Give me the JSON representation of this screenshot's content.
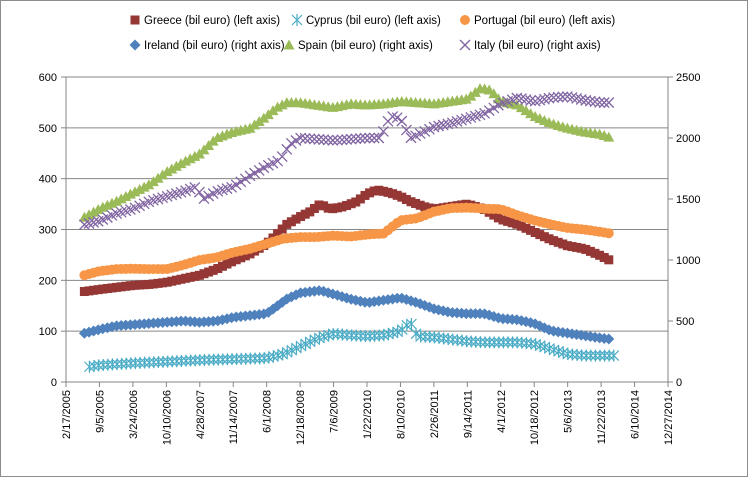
{
  "chart_data": {
    "type": "line",
    "x_ticks": [
      "2/17/2005",
      "9/5/2005",
      "3/24/2006",
      "10/10/2006",
      "4/28/2007",
      "11/14/2007",
      "6/1/2008",
      "12/18/2008",
      "7/6/2009",
      "1/22/2010",
      "8/10/2010",
      "2/26/2011",
      "9/14/2011",
      "4/1/2012",
      "10/18/2012",
      "5/6/2013",
      "11/22/2013",
      "6/10/2014",
      "12/27/2014"
    ],
    "y_left": {
      "min": 0,
      "max": 600,
      "ticks": [
        "0",
        "100",
        "200",
        "300",
        "400",
        "500",
        "600"
      ]
    },
    "y_right": {
      "min": 0,
      "max": 2500,
      "ticks": [
        "0",
        "500",
        "1000",
        "1500",
        "2000",
        "2500"
      ]
    },
    "gridlines": "horizontal",
    "legend_position": "top",
    "series": [
      {
        "name": "Greece (bil euro) (left axis)",
        "axis": "left",
        "marker": "square",
        "color": "#953735",
        "x": [
          0.55,
          1,
          2,
          2.5,
          3,
          4,
          4.5,
          5,
          5.5,
          6,
          6.3,
          6.6,
          7,
          7.3,
          7.6,
          7.9,
          8.3,
          8.7,
          9,
          9.3,
          9.7,
          10,
          10.3,
          10.7,
          11,
          11.5,
          12,
          12.5,
          13,
          13.5,
          14,
          14.5,
          15,
          15.5,
          16,
          16.3
        ],
        "values": [
          178,
          182,
          190,
          192,
          196,
          210,
          222,
          238,
          252,
          272,
          290,
          310,
          325,
          335,
          350,
          340,
          345,
          355,
          370,
          378,
          372,
          365,
          355,
          345,
          340,
          345,
          350,
          340,
          320,
          310,
          295,
          280,
          268,
          262,
          248,
          238
        ]
      },
      {
        "name": "Cyprus (bil euro) (left axis)",
        "axis": "left",
        "marker": "star",
        "color": "#4bacc6",
        "x": [
          0.7,
          1,
          1.5,
          2,
          3,
          4,
          5,
          6,
          6.5,
          7,
          7.5,
          8,
          8.5,
          9,
          9.5,
          10,
          10.3,
          10.5,
          11,
          11.5,
          12,
          12.5,
          13,
          13.5,
          14,
          14.5,
          15,
          15.5,
          16,
          16.4
        ],
        "values": [
          30,
          33,
          35,
          37,
          40,
          43,
          45,
          47,
          55,
          70,
          85,
          95,
          92,
          90,
          92,
          100,
          118,
          90,
          88,
          84,
          80,
          78,
          78,
          78,
          75,
          65,
          55,
          52,
          52,
          52
        ]
      },
      {
        "name": "Portugal (bil euro) (left axis)",
        "axis": "left",
        "marker": "circle",
        "color": "#f79646",
        "x": [
          0.55,
          1,
          1.5,
          2,
          2.5,
          3,
          3.5,
          4,
          4.5,
          5,
          5.5,
          6,
          6.5,
          7,
          7.5,
          8,
          8.5,
          9,
          9.5,
          10,
          10.5,
          11,
          11.5,
          12,
          12.5,
          13,
          13.5,
          14,
          14.5,
          15,
          15.5,
          16,
          16.3
        ],
        "values": [
          210,
          218,
          222,
          223,
          222,
          222,
          230,
          240,
          245,
          255,
          262,
          272,
          282,
          285,
          285,
          288,
          286,
          290,
          292,
          318,
          322,
          335,
          342,
          343,
          341,
          340,
          328,
          318,
          310,
          303,
          300,
          295,
          292
        ]
      },
      {
        "name": "Ireland (bil euro) (right axis)",
        "axis": "right",
        "marker": "diamond",
        "color": "#4f81bd",
        "x": [
          0.55,
          1,
          1.5,
          2,
          2.5,
          3,
          3.5,
          4,
          4.5,
          5,
          5.5,
          6,
          6.3,
          6.6,
          7,
          7.3,
          7.6,
          8,
          8.5,
          9,
          9.5,
          10,
          10.5,
          11,
          11.5,
          12,
          12.5,
          13,
          13.5,
          14,
          14.5,
          15,
          15.5,
          16,
          16.3
        ],
        "values": [
          400,
          430,
          460,
          470,
          480,
          490,
          500,
          490,
          500,
          530,
          545,
          560,
          620,
          680,
          730,
          740,
          750,
          720,
          680,
          650,
          670,
          690,
          650,
          600,
          570,
          560,
          560,
          520,
          510,
          480,
          420,
          400,
          380,
          360,
          350
        ]
      },
      {
        "name": "Spain (bil euro) (right axis)",
        "axis": "right",
        "marker": "triangle",
        "color": "#9bbb59",
        "x": [
          0.55,
          1,
          1.5,
          2,
          2.5,
          3,
          3.5,
          4,
          4.5,
          5,
          5.5,
          6,
          6.3,
          6.6,
          7,
          7.5,
          8,
          8.5,
          9,
          9.5,
          10,
          10.5,
          11,
          11.5,
          12,
          12.4,
          12.7,
          13,
          13.5,
          14,
          14.5,
          15,
          15.5,
          16,
          16.3
        ],
        "values": [
          1350,
          1420,
          1480,
          1550,
          1620,
          1720,
          1800,
          1870,
          2000,
          2050,
          2080,
          2180,
          2250,
          2290,
          2290,
          2270,
          2250,
          2280,
          2270,
          2280,
          2300,
          2290,
          2280,
          2300,
          2320,
          2410,
          2390,
          2300,
          2270,
          2180,
          2120,
          2080,
          2050,
          2030,
          2000
        ]
      },
      {
        "name": "Italy (bil euro) (right axis)",
        "axis": "right",
        "marker": "x",
        "color": "#8064a2",
        "x": [
          0.55,
          1,
          1.5,
          2,
          2.5,
          3,
          3.5,
          3.9,
          4.1,
          4.5,
          5,
          5.5,
          6,
          6.4,
          6.7,
          7,
          7.5,
          8,
          8.5,
          9,
          9.4,
          9.7,
          10,
          10.3,
          10.7,
          11,
          11.5,
          12,
          12.5,
          13,
          13.5,
          14,
          14.5,
          15,
          15.5,
          16,
          16.3
        ],
        "values": [
          1290,
          1320,
          1380,
          1420,
          1480,
          1520,
          1560,
          1600,
          1500,
          1560,
          1600,
          1690,
          1770,
          1820,
          1950,
          2000,
          1990,
          1980,
          1990,
          2000,
          2000,
          2180,
          2160,
          2000,
          2050,
          2090,
          2120,
          2160,
          2200,
          2280,
          2330,
          2300,
          2330,
          2340,
          2310,
          2290,
          2290
        ]
      }
    ]
  }
}
